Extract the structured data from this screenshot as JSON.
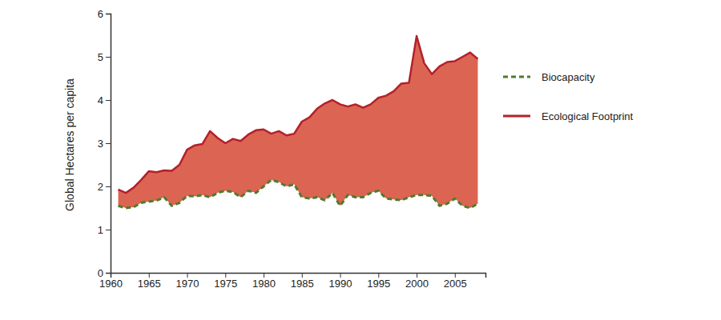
{
  "chart_data": {
    "type": "area",
    "y_label": "Global Hectares per capita",
    "x": [
      1961,
      1962,
      1963,
      1964,
      1965,
      1966,
      1967,
      1968,
      1969,
      1970,
      1971,
      1972,
      1973,
      1974,
      1975,
      1976,
      1977,
      1978,
      1979,
      1980,
      1981,
      1982,
      1983,
      1984,
      1985,
      1986,
      1987,
      1988,
      1989,
      1990,
      1991,
      1992,
      1993,
      1994,
      1995,
      1996,
      1997,
      1998,
      1999,
      2000,
      2001,
      2002,
      2003,
      2004,
      2005,
      2006,
      2007,
      2008
    ],
    "series": [
      {
        "name": "Biocapacity",
        "color": "#4f7b2b",
        "line_style": "dashed",
        "values": [
          1.55,
          1.5,
          1.52,
          1.62,
          1.65,
          1.67,
          1.75,
          1.55,
          1.62,
          1.78,
          1.77,
          1.8,
          1.75,
          1.85,
          1.9,
          1.87,
          1.75,
          1.9,
          1.85,
          2.0,
          2.15,
          2.1,
          2.0,
          2.05,
          1.75,
          1.72,
          1.75,
          1.68,
          1.85,
          1.55,
          1.8,
          1.75,
          1.75,
          1.85,
          1.9,
          1.72,
          1.7,
          1.68,
          1.75,
          1.8,
          1.8,
          1.78,
          1.55,
          1.6,
          1.72,
          1.55,
          1.5,
          1.6
        ]
      },
      {
        "name": "Ecological Footprint",
        "color": "#b3202a",
        "line_style": "solid",
        "values": [
          1.93,
          1.85,
          1.97,
          2.15,
          2.35,
          2.33,
          2.37,
          2.36,
          2.5,
          2.85,
          2.95,
          2.98,
          3.28,
          3.12,
          3.0,
          3.1,
          3.05,
          3.2,
          3.3,
          3.32,
          3.22,
          3.28,
          3.18,
          3.22,
          3.5,
          3.6,
          3.8,
          3.92,
          4.0,
          3.9,
          3.85,
          3.9,
          3.82,
          3.9,
          4.05,
          4.1,
          4.2,
          4.38,
          4.4,
          5.48,
          4.85,
          4.6,
          4.78,
          4.88,
          4.9,
          5.0,
          5.1,
          4.95
        ]
      }
    ],
    "xlim": [
      1960,
      2009
    ],
    "xticks": [
      1960,
      1965,
      1970,
      1975,
      1980,
      1985,
      1990,
      1995,
      2000,
      2005
    ],
    "ylim": [
      0,
      6
    ],
    "yticks": [
      0,
      1,
      2,
      3,
      4,
      5,
      6
    ],
    "legend": "right"
  }
}
